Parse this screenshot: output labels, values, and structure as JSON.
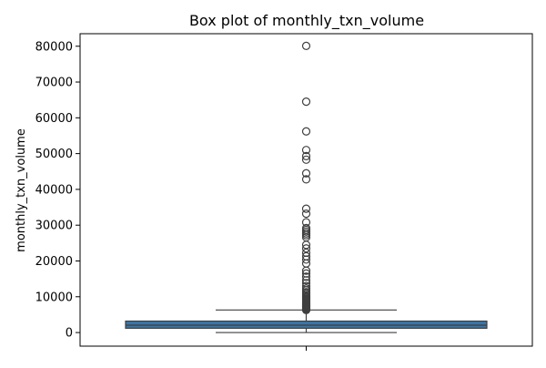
{
  "chart_data": {
    "type": "box",
    "title": "Box plot of monthly_txn_volume",
    "xlabel": "",
    "ylabel": "monthly_txn_volume",
    "ylim": [
      -3800,
      83500
    ],
    "yticks": [
      0,
      10000,
      20000,
      30000,
      40000,
      50000,
      60000,
      70000,
      80000
    ],
    "ytick_labels": [
      "0",
      "10000",
      "20000",
      "30000",
      "40000",
      "50000",
      "60000",
      "70000",
      "80000"
    ],
    "grid": false,
    "legend": "none",
    "box_color": "#3a75a6",
    "series": [
      {
        "whisker_low": 0,
        "q1": 1200,
        "median": 2050,
        "q3": 3200,
        "whisker_high": 6300,
        "outliers": [
          6300,
          6500,
          6700,
          6900,
          7100,
          7300,
          7500,
          7700,
          7900,
          8100,
          8300,
          8600,
          8900,
          9200,
          9500,
          9800,
          10100,
          10500,
          10900,
          11300,
          11800,
          12300,
          13000,
          13800,
          14600,
          15600,
          16500,
          17300,
          19300,
          20400,
          21300,
          22300,
          23500,
          24500,
          26600,
          27200,
          27700,
          28200,
          28700,
          29200,
          30800,
          33200,
          34600,
          42800,
          44500,
          48300,
          49300,
          51000,
          56200,
          64500,
          80100
        ]
      }
    ]
  }
}
